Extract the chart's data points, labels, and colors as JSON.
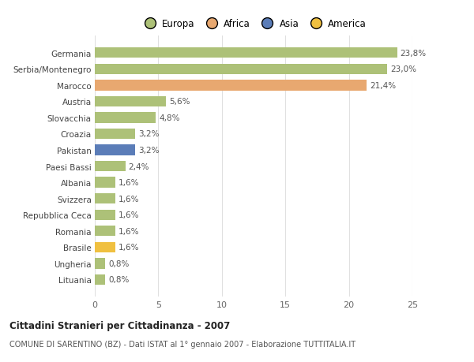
{
  "categories": [
    "Lituania",
    "Ungheria",
    "Brasile",
    "Romania",
    "Repubblica Ceca",
    "Svizzera",
    "Albania",
    "Paesi Bassi",
    "Pakistan",
    "Croazia",
    "Slovacchia",
    "Austria",
    "Marocco",
    "Serbia/Montenegro",
    "Germania"
  ],
  "values": [
    0.8,
    0.8,
    1.6,
    1.6,
    1.6,
    1.6,
    1.6,
    2.4,
    3.2,
    3.2,
    4.8,
    5.6,
    21.4,
    23.0,
    23.8
  ],
  "labels": [
    "0,8%",
    "0,8%",
    "1,6%",
    "1,6%",
    "1,6%",
    "1,6%",
    "1,6%",
    "2,4%",
    "3,2%",
    "3,2%",
    "4,8%",
    "5,6%",
    "21,4%",
    "23,0%",
    "23,8%"
  ],
  "colors": [
    "#adc178",
    "#adc178",
    "#f0c040",
    "#adc178",
    "#adc178",
    "#adc178",
    "#adc178",
    "#adc178",
    "#5b7db8",
    "#adc178",
    "#adc178",
    "#adc178",
    "#e8a870",
    "#adc178",
    "#adc178"
  ],
  "legend_labels": [
    "Europa",
    "Africa",
    "Asia",
    "America"
  ],
  "legend_colors": [
    "#adc178",
    "#e8a870",
    "#5b7db8",
    "#f0c040"
  ],
  "title": "Cittadini Stranieri per Cittadinanza - 2007",
  "subtitle": "COMUNE DI SARENTINO (BZ) - Dati ISTAT al 1° gennaio 2007 - Elaborazione TUTTITALIA.IT",
  "xlim": [
    0,
    25
  ],
  "xticks": [
    0,
    5,
    10,
    15,
    20,
    25
  ],
  "background_color": "#ffffff",
  "grid_color": "#e0e0e0",
  "bar_height": 0.65
}
